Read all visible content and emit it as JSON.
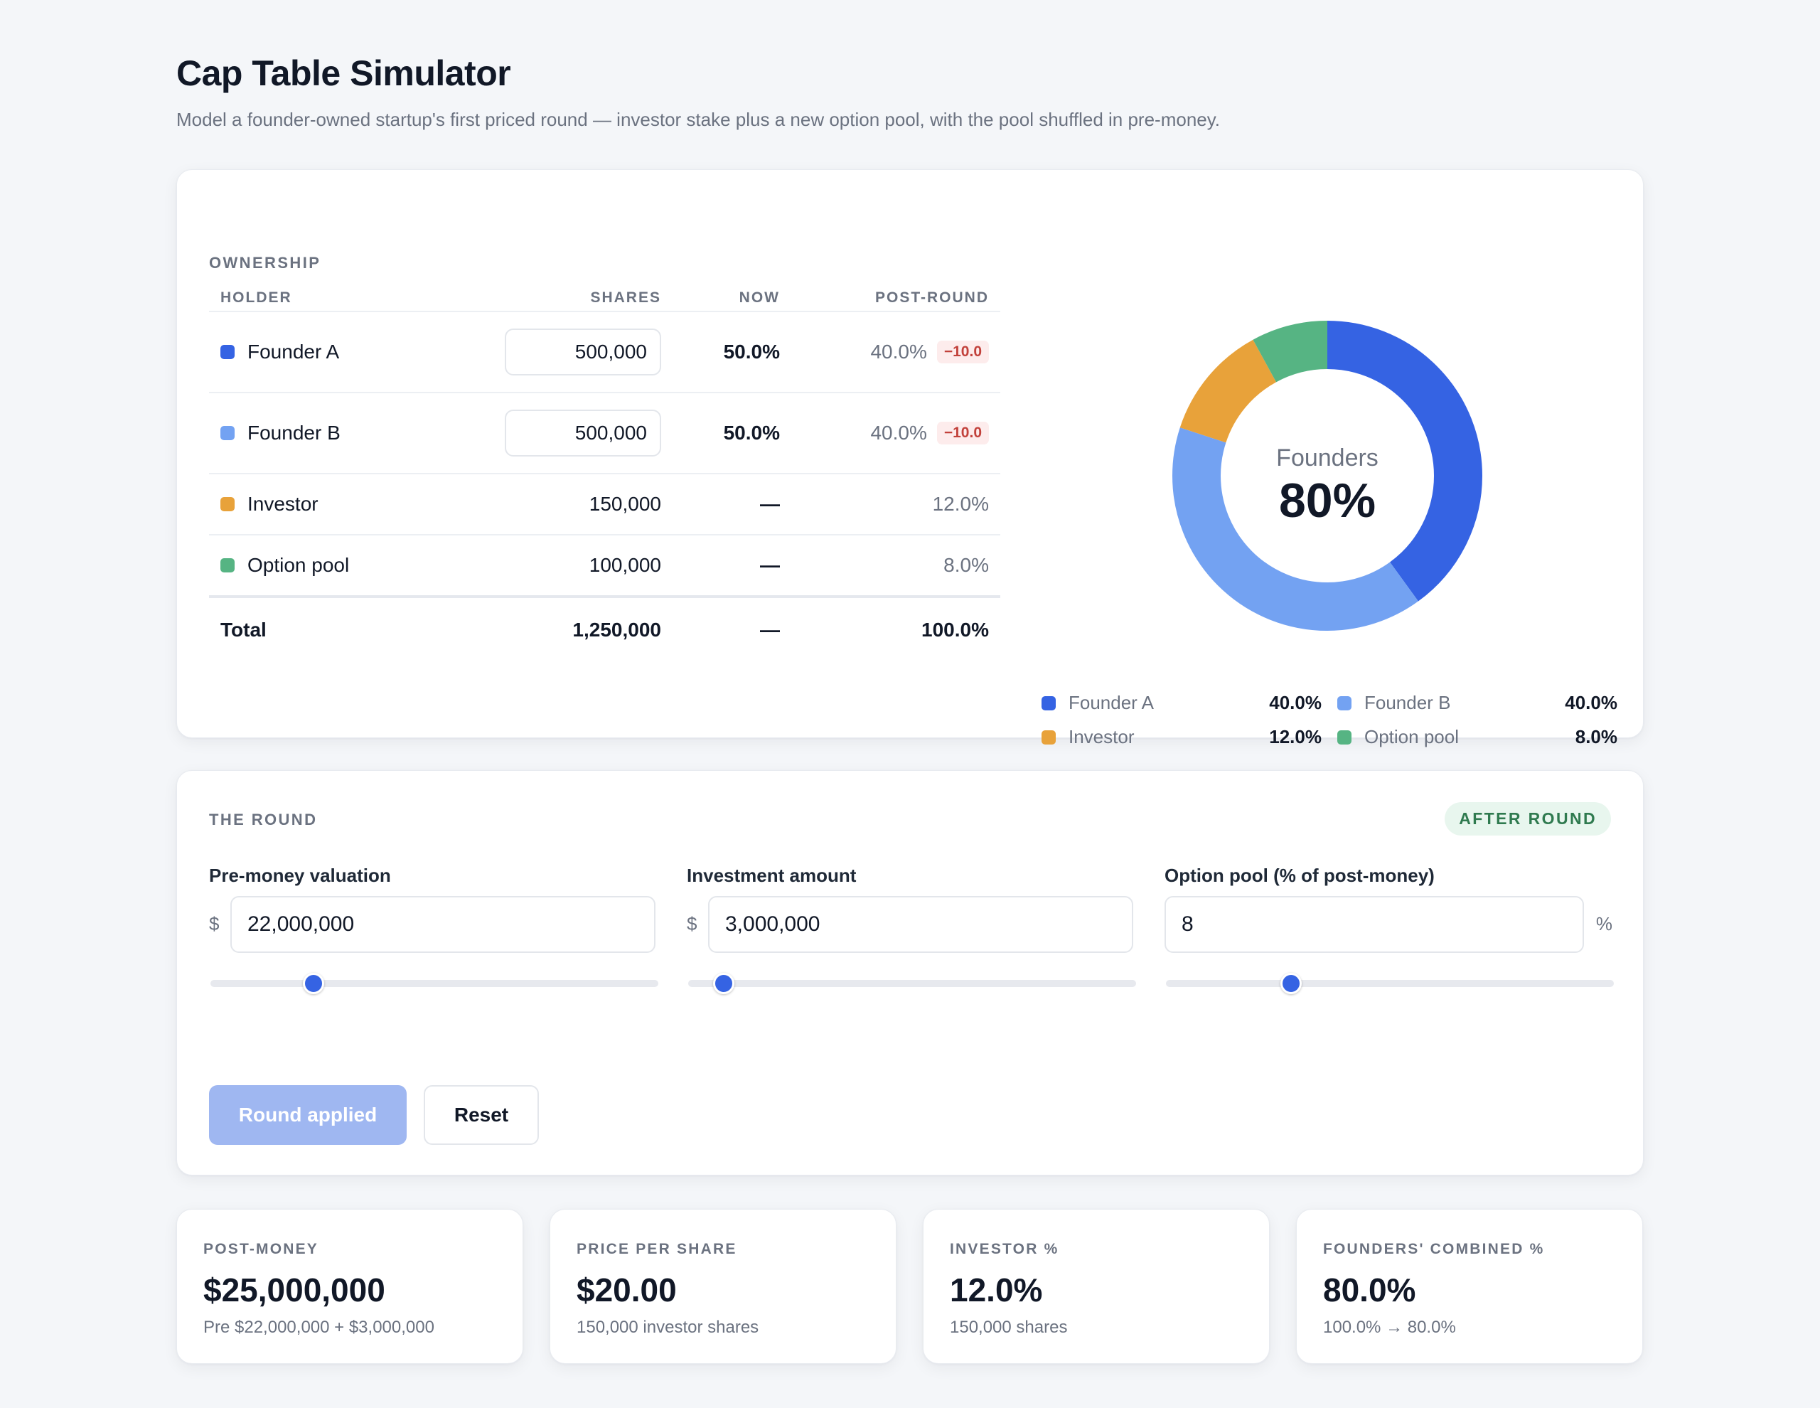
{
  "header": {
    "title": "Cap Table Simulator",
    "subtitle": "Model a founder-owned startup's first priced round — investor stake plus a new option pool, with the pool shuffled in pre-money."
  },
  "ownership": {
    "section_label": "OWNERSHIP",
    "columns": {
      "holder": "HOLDER",
      "shares": "SHARES",
      "now": "NOW",
      "post": "POST-ROUND"
    },
    "rows": [
      {
        "holder": "Founder A",
        "color": "#3563e3",
        "shares": "500,000",
        "editable": true,
        "now": "50.0%",
        "post": "40.0%",
        "delta": "−10.0"
      },
      {
        "holder": "Founder B",
        "color": "#73a2f2",
        "shares": "500,000",
        "editable": true,
        "now": "50.0%",
        "post": "40.0%",
        "delta": "−10.0"
      },
      {
        "holder": "Investor",
        "color": "#e8a23a",
        "shares": "150,000",
        "editable": false,
        "now": "—",
        "post": "12.0%"
      },
      {
        "holder": "Option pool",
        "color": "#56b483",
        "shares": "100,000",
        "editable": false,
        "now": "—",
        "post": "8.0%"
      }
    ],
    "total": {
      "label": "Total",
      "shares": "1,250,000",
      "now": "—",
      "post": "100.0%"
    },
    "donut": {
      "center_label": "Founders",
      "center_value": "80%",
      "slices": [
        {
          "name": "Founder A",
          "value": 40.0,
          "color": "#3563e3"
        },
        {
          "name": "Founder B",
          "value": 40.0,
          "color": "#73a2f2"
        },
        {
          "name": "Investor",
          "value": 12.0,
          "color": "#e8a23a"
        },
        {
          "name": "Option pool",
          "value": 8.0,
          "color": "#56b483"
        }
      ]
    },
    "legend": [
      {
        "name": "Founder A",
        "value": "40.0%",
        "color": "#3563e3"
      },
      {
        "name": "Founder B",
        "value": "40.0%",
        "color": "#73a2f2"
      },
      {
        "name": "Investor",
        "value": "12.0%",
        "color": "#e8a23a"
      },
      {
        "name": "Option pool",
        "value": "8.0%",
        "color": "#56b483"
      }
    ]
  },
  "round": {
    "section_label": "THE ROUND",
    "badge": "AFTER ROUND",
    "pre_money": {
      "label": "Pre-money valuation",
      "prefix": "$",
      "value": "22,000,000",
      "slider_fraction": 0.23
    },
    "investment": {
      "label": "Investment amount",
      "prefix": "$",
      "value": "3,000,000",
      "slider_fraction": 0.08
    },
    "pool": {
      "label": "Option pool (% of post-money)",
      "suffix": "%",
      "value": "8",
      "slider_fraction": 0.28
    },
    "apply_button": "Round applied",
    "reset_button": "Reset"
  },
  "stats": [
    {
      "label": "POST-MONEY",
      "value": "$25,000,000",
      "sub": "Pre $22,000,000 + $3,000,000"
    },
    {
      "label": "PRICE PER SHARE",
      "value": "$20.00",
      "sub": "150,000 investor shares"
    },
    {
      "label": "INVESTOR %",
      "value": "12.0%",
      "sub": "150,000 shares"
    },
    {
      "label": "FOUNDERS' COMBINED %",
      "value": "80.0%",
      "sub": "100.0% → 80.0%"
    }
  ],
  "colors": {
    "accent": "#3563e3",
    "badge_bg": "#e8f6ee",
    "badge_text": "#2f7a4f",
    "delta_bg": "#fdecec",
    "delta_text": "#c2413b"
  }
}
